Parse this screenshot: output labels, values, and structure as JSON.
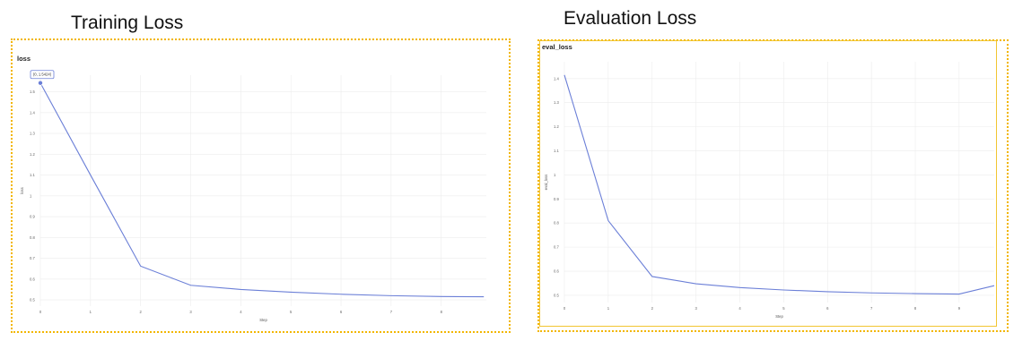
{
  "headings": {
    "left": "Training Loss",
    "right": "Evaluation Loss"
  },
  "colors": {
    "frame": "#f2b600",
    "series": "#6b7fd7",
    "grid": "#ececec"
  },
  "chart_data": [
    {
      "type": "line",
      "title": "loss",
      "xlabel": "Step",
      "ylabel": "loss",
      "grid": true,
      "xlim": [
        0,
        8.9
      ],
      "ylim": [
        0.47,
        1.58
      ],
      "xticks": [
        0,
        1,
        2,
        3,
        4,
        5,
        6,
        7,
        8
      ],
      "yticks": [
        0.5,
        0.6,
        0.7,
        0.8,
        0.9,
        1,
        1.1,
        1.2,
        1.3,
        1.4,
        1.5
      ],
      "series": [
        {
          "x": [
            0,
            1,
            2,
            3,
            4,
            5,
            6,
            7,
            8,
            8.85
          ],
          "y": [
            1.5424,
            1.1,
            0.662,
            0.57,
            0.55,
            0.537,
            0.527,
            0.52,
            0.516,
            0.515
          ]
        }
      ],
      "tooltip": {
        "x": 0,
        "y": 1.5424,
        "label": "(0, 1.5424)"
      }
    },
    {
      "type": "line",
      "title": "eval_loss",
      "xlabel": "Step",
      "ylabel": "eval_loss",
      "grid": true,
      "xlim": [
        0,
        9.8
      ],
      "ylim": [
        0.47,
        1.47
      ],
      "xticks": [
        0,
        1,
        2,
        3,
        4,
        5,
        6,
        7,
        8,
        9
      ],
      "yticks": [
        0.5,
        0.6,
        0.7,
        0.8,
        0.9,
        1,
        1.1,
        1.2,
        1.3,
        1.4
      ],
      "series": [
        {
          "x": [
            0,
            1,
            2,
            3,
            4,
            5,
            6,
            7,
            8,
            9,
            9.8
          ],
          "y": [
            1.415,
            0.81,
            0.578,
            0.548,
            0.532,
            0.522,
            0.515,
            0.51,
            0.507,
            0.505,
            0.54
          ]
        }
      ]
    }
  ]
}
